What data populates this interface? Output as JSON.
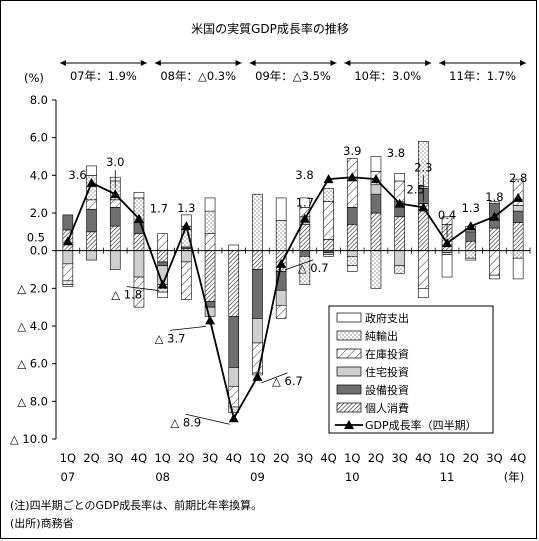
{
  "chart_data": {
    "type": "bar",
    "title": "米国の実質GDP成長率の推移",
    "ylabel": "(%)",
    "ylim": [
      -10,
      8
    ],
    "yticks": [
      8,
      6,
      4,
      2,
      0,
      -2,
      -4,
      -6,
      -8,
      -10
    ],
    "ytick_labels": [
      "8.0",
      "6.0",
      "4.0",
      "2.0",
      "0.0",
      "△ 2.0",
      "△ 4.0",
      "△ 6.0",
      "△ 8.0",
      "△ 10.0"
    ],
    "categories": [
      "1Q 07",
      "2Q",
      "3Q",
      "4Q",
      "1Q 08",
      "2Q",
      "3Q",
      "4Q",
      "1Q 09",
      "2Q",
      "3Q",
      "4Q",
      "1Q 10",
      "2Q",
      "3Q",
      "4Q",
      "1Q 11",
      "2Q",
      "3Q",
      "4Q"
    ],
    "x_quarter_labels": [
      "1Q",
      "2Q",
      "3Q",
      "4Q",
      "1Q",
      "2Q",
      "3Q",
      "4Q",
      "1Q",
      "2Q",
      "3Q",
      "4Q",
      "1Q",
      "2Q",
      "3Q",
      "4Q",
      "1Q",
      "2Q",
      "3Q",
      "4Q"
    ],
    "x_year_labels": [
      "07",
      "08",
      "09",
      "10",
      "11"
    ],
    "x_unit": "(年)",
    "annual_periods": [
      "07年：1.9%",
      "08年：△0.3%",
      "09年：△3.5%",
      "10年：3.0%",
      "11年：1.7%"
    ],
    "series": [
      {
        "name": "個人消費",
        "kind": "bar",
        "values": [
          1.1,
          1.0,
          1.3,
          0.9,
          -0.6,
          0.1,
          -2.7,
          -3.5,
          -1.0,
          -1.1,
          1.4,
          0.6,
          1.4,
          2.0,
          1.8,
          2.5,
          1.4,
          0.5,
          1.2,
          1.5
        ]
      },
      {
        "name": "設備投資",
        "kind": "bar",
        "values": [
          0.8,
          1.2,
          1.0,
          0.6,
          -0.2,
          0.1,
          -0.3,
          -2.7,
          -2.6,
          -1.0,
          -0.3,
          -0.1,
          0.9,
          1.0,
          0.8,
          0.8,
          0.0,
          0.5,
          1.3,
          0.6
        ]
      },
      {
        "name": "住宅投資",
        "kind": "bar",
        "values": [
          -0.7,
          -0.5,
          -1.0,
          -1.4,
          -1.0,
          -0.6,
          -0.5,
          -1.0,
          -1.3,
          -0.8,
          0.4,
          -0.1,
          -0.3,
          0.5,
          -0.8,
          0.1,
          -0.1,
          0.1,
          0.0,
          0.3
        ]
      },
      {
        "name": "在庫投資",
        "kind": "bar",
        "values": [
          -0.9,
          0.5,
          0.4,
          -1.6,
          0.9,
          -2.0,
          0.9,
          -1.1,
          -1.6,
          -0.7,
          0.5,
          2.0,
          2.6,
          0.7,
          1.1,
          -2.0,
          0.4,
          0.2,
          -1.3,
          1.4
        ]
      },
      {
        "name": "純輸出",
        "kind": "bar",
        "values": [
          -0.2,
          1.3,
          1.0,
          1.3,
          -0.4,
          1.1,
          1.2,
          -0.3,
          3.0,
          1.6,
          -1.5,
          0.7,
          -0.5,
          -2.0,
          -0.4,
          2.4,
          -0.1,
          -0.4,
          0.1,
          -0.4
        ]
      },
      {
        "name": "政府支出",
        "kind": "bar",
        "values": [
          -0.1,
          0.5,
          0.2,
          0.3,
          -0.3,
          0.6,
          0.7,
          0.3,
          -0.1,
          1.2,
          0.5,
          -0.1,
          -0.3,
          0.8,
          0.4,
          -0.5,
          -1.2,
          -0.1,
          -0.2,
          -1.1
        ]
      },
      {
        "name": "GDP成長率（四半期）",
        "kind": "line",
        "values": [
          0.5,
          3.6,
          3.0,
          1.7,
          -1.8,
          1.3,
          -3.7,
          -8.9,
          -6.7,
          -0.7,
          1.7,
          3.8,
          3.9,
          3.8,
          2.5,
          2.3,
          0.4,
          1.3,
          1.8,
          2.8
        ]
      }
    ],
    "gdp_point_labels": [
      "0.5",
      "3.6",
      "3.0",
      "1.7",
      "△ 1.8",
      "1.3",
      "△ 3.7",
      "△ 8.9",
      "△ 6.7",
      "△ 0.7",
      "1.7",
      "3.8",
      "3.9",
      "3.8",
      "2.5",
      "2.3",
      "0.4",
      "1.3",
      "1.8",
      "2.8"
    ],
    "legend_position": "bottom-right inside plot",
    "grid": false
  },
  "notes": {
    "note": "(注)四半期ごとのGDP成長率は、前期比年率換算。",
    "source": "(出所)商務省"
  }
}
